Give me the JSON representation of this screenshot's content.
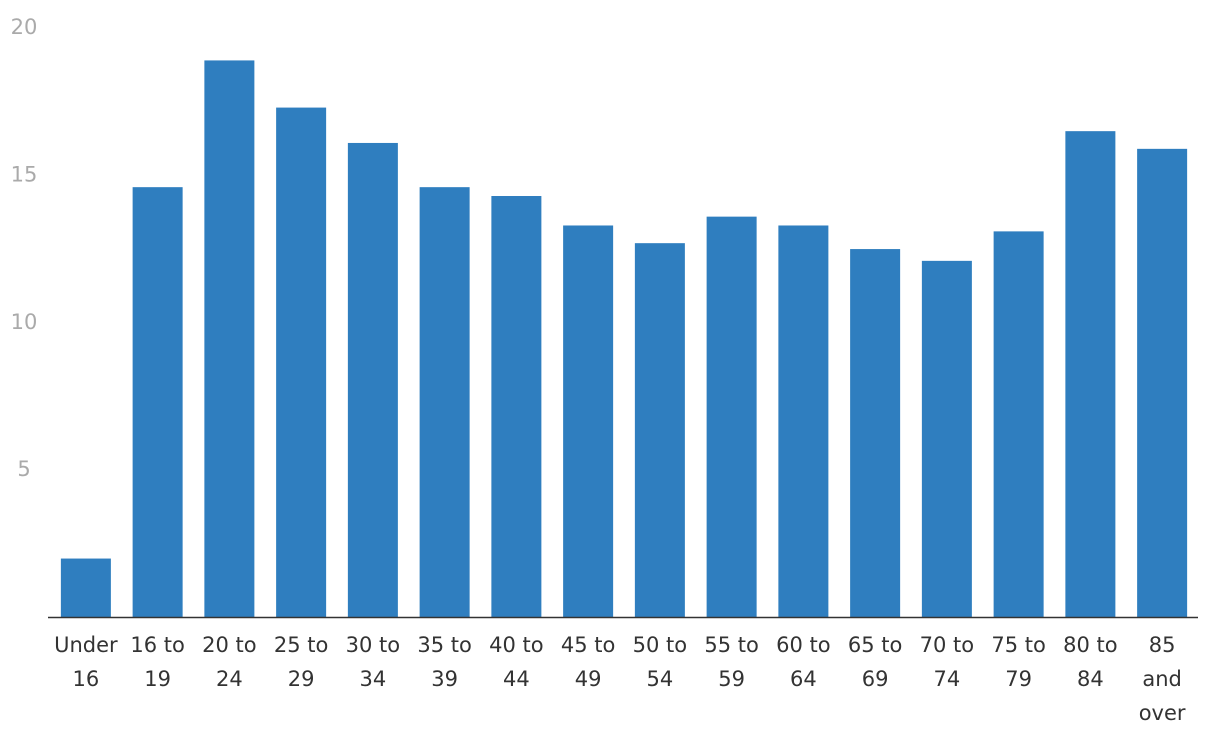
{
  "chart_data": {
    "type": "bar",
    "categories": [
      "Under 16",
      "16 to 19",
      "20 to 24",
      "25 to 29",
      "30 to 34",
      "35 to 39",
      "40 to 44",
      "45 to 49",
      "50 to 54",
      "55 to 59",
      "60 to 64",
      "65 to 69",
      "70 to 74",
      "75 to 79",
      "80 to 84",
      "85 and over"
    ],
    "values": [
      2.0,
      14.6,
      18.9,
      17.3,
      16.1,
      14.6,
      14.3,
      13.3,
      12.7,
      13.6,
      13.3,
      12.5,
      12.1,
      13.1,
      16.5,
      15.9
    ],
    "color": "#2f7ebf",
    "ylim": [
      0,
      20
    ],
    "yticks": [
      5,
      10,
      15,
      20
    ],
    "grid": false
  }
}
